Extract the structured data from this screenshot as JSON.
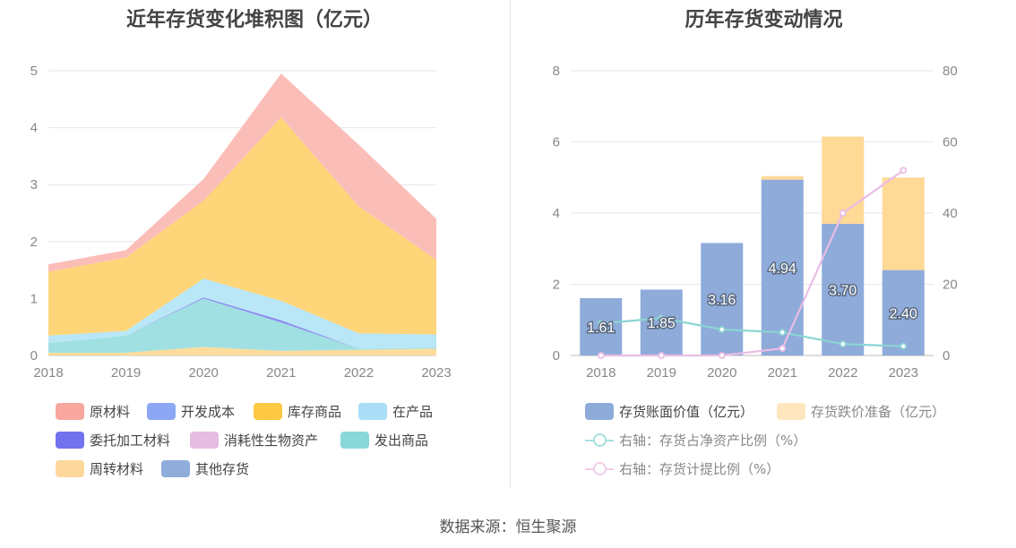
{
  "source": "数据来源：恒生聚源",
  "chart_data": [
    {
      "type": "area",
      "stacked": true,
      "title": "近年存货变化堆积图（亿元）",
      "categories": [
        "2018",
        "2019",
        "2020",
        "2021",
        "2022",
        "2023"
      ],
      "ylim": [
        0,
        5
      ],
      "yticks": [
        "0",
        "1",
        "2",
        "3",
        "4",
        "5"
      ],
      "grid": true,
      "legend_position": "bottom",
      "series": [
        {
          "name": "周转材料",
          "color": "#fedc9b",
          "values": [
            0.05,
            0.05,
            0.15,
            0.08,
            0.1,
            0.12
          ]
        },
        {
          "name": "发出商品",
          "color": "#a0e0e2",
          "values": [
            0.17,
            0.3,
            0.85,
            0.5,
            0.02,
            0.02
          ]
        },
        {
          "name": "委托加工材料",
          "color": "#8b8bef",
          "values": [
            0.0,
            0.0,
            0.02,
            0.04,
            0.0,
            0.0
          ]
        },
        {
          "name": "在产品",
          "color": "#b9e7f8",
          "values": [
            0.13,
            0.08,
            0.33,
            0.34,
            0.27,
            0.23
          ]
        },
        {
          "name": "库存商品",
          "color": "#fed579",
          "values": [
            1.12,
            1.29,
            1.37,
            3.22,
            2.23,
            1.31
          ]
        },
        {
          "name": "原材料",
          "color": "#fbbdb8",
          "values": [
            0.13,
            0.13,
            0.38,
            0.77,
            1.08,
            0.72
          ]
        }
      ],
      "legend": [
        {
          "name": "原材料",
          "color": "#f8a79f"
        },
        {
          "name": "开发成本",
          "color": "#8ca8f5"
        },
        {
          "name": "库存商品",
          "color": "#fdc843"
        },
        {
          "name": "在产品",
          "color": "#a9def6"
        },
        {
          "name": "委托加工材料",
          "color": "#7272ee"
        },
        {
          "name": "消耗性生物资产",
          "color": "#e6bce0"
        },
        {
          "name": "发出商品",
          "color": "#8ad7d8"
        },
        {
          "name": "周转材料",
          "color": "#fdd79c"
        },
        {
          "name": "其他存货",
          "color": "#8facdb"
        }
      ]
    },
    {
      "type": "bar",
      "stacked": true,
      "title": "历年存货变动情况",
      "categories": [
        "2018",
        "2019",
        "2020",
        "2021",
        "2022",
        "2023"
      ],
      "ylim": [
        0,
        8
      ],
      "yticks": [
        "0",
        "2",
        "4",
        "6",
        "8"
      ],
      "y2lim": [
        0,
        80
      ],
      "y2ticks": [
        "0",
        "20",
        "40",
        "60",
        "80"
      ],
      "grid": true,
      "legend_position": "bottom",
      "bars": [
        {
          "name": "存货账面价值（亿元）",
          "color": "#8eabda",
          "values": [
            1.61,
            1.85,
            3.16,
            4.94,
            3.7,
            2.4
          ],
          "labels": [
            "1.61",
            "1.85",
            "3.16",
            "4.94",
            "3.70",
            "2.40"
          ]
        },
        {
          "name": "存货跌价准备（亿元）",
          "color": "#ffd996",
          "values": [
            0.0,
            0.0,
            0.0,
            0.1,
            2.45,
            2.6
          ]
        }
      ],
      "lines": [
        {
          "name": "右轴：存货占净资产比例（%）",
          "color": "#8ad5d3",
          "axis": "right",
          "values": [
            9,
            10.5,
            7.3,
            6.5,
            3.2,
            2.6
          ]
        },
        {
          "name": "右轴：存货计提比例（%）",
          "color": "#e9bde5",
          "axis": "right",
          "values": [
            0,
            0,
            0,
            2,
            40,
            52
          ]
        }
      ],
      "legend": [
        {
          "name": "存货账面价值（亿元）",
          "color": "#8eabda",
          "kind": "box"
        },
        {
          "name": "存货跌价准备（亿元）",
          "color": "#fee6bf",
          "kind": "box"
        },
        {
          "name": "右轴：存货占净资产比例（%）",
          "color": "#a7e0dd",
          "kind": "line"
        },
        {
          "name": "右轴：存货计提比例（%）",
          "color": "#f1cdea",
          "kind": "line"
        }
      ]
    }
  ]
}
